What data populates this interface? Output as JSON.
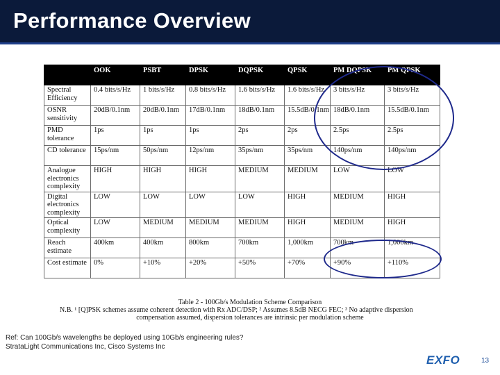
{
  "slide": {
    "title": "Performance Overview",
    "page_number": "13",
    "logo": "EXFO",
    "reference_lines": [
      "Ref: Can 100Gb/s wavelengths be deployed using 10Gb/s engineering rules?",
      "StrataLight Communications Inc, Cisco Systems Inc"
    ]
  },
  "table": {
    "headers": [
      "",
      "OOK",
      "PSBT",
      "DPSK",
      "DQPSK",
      "QPSK",
      "PM DQPSK",
      "PM QPSK"
    ],
    "rows": [
      [
        "Spectral Efficiency",
        "0.4 bits/s/Hz",
        "1 bits/s/Hz",
        "0.8 bits/s/Hz",
        "1.6 bits/s/Hz",
        "1.6 bits/s/Hz",
        "3 bits/s/Hz",
        "3 bits/s/Hz"
      ],
      [
        "OSNR sensitivity",
        "20dB/0.1nm",
        "20dB/0.1nm",
        "17dB/0.1nm",
        "18dB/0.1nm",
        "15.5dB/0.1nm",
        "18dB/0.1nm",
        "15.5dB/0.1nm"
      ],
      [
        "PMD tolerance",
        "1ps",
        "1ps",
        "1ps",
        "2ps",
        "2ps",
        "2.5ps",
        "2.5ps"
      ],
      [
        "CD tolerance",
        "15ps/nm",
        "50ps/nm",
        "12ps/nm",
        "35ps/nm",
        "35ps/nm",
        "140ps/nm",
        "140ps/nm"
      ],
      [
        "Analogue electronics complexity",
        "HIGH",
        "HIGH",
        "HIGH",
        "MEDIUM",
        "MEDIUM",
        "LOW",
        "LOW"
      ],
      [
        "Digital electronics complexity",
        "LOW",
        "LOW",
        "LOW",
        "LOW",
        "HIGH",
        "MEDIUM",
        "HIGH"
      ],
      [
        "Optical complexity",
        "LOW",
        "MEDIUM",
        "MEDIUM",
        "MEDIUM",
        "HIGH",
        "MEDIUM",
        "HIGH"
      ],
      [
        "Reach estimate",
        "400km",
        "400km",
        "800km",
        "700km",
        "1,000km",
        "700km",
        "1,000km"
      ],
      [
        "Cost estimate",
        "0%",
        "+10%",
        "+20%",
        "+50%",
        "+70%",
        "+90%",
        "+110%"
      ]
    ],
    "caption_title": "Table 2 - 100Gb/s Modulation Scheme Comparison",
    "caption_note_1": "N.B. ¹ [Q]PSK schemes assume coherent detection with Rx ADC/DSP; ² Assumes 8.5dB NECG FEC; ³ No adaptive dispersion",
    "caption_note_2": "compensation assumed, dispersion tolerances are intrinsic per modulation scheme"
  },
  "annotation_color": "#1f2a8c"
}
